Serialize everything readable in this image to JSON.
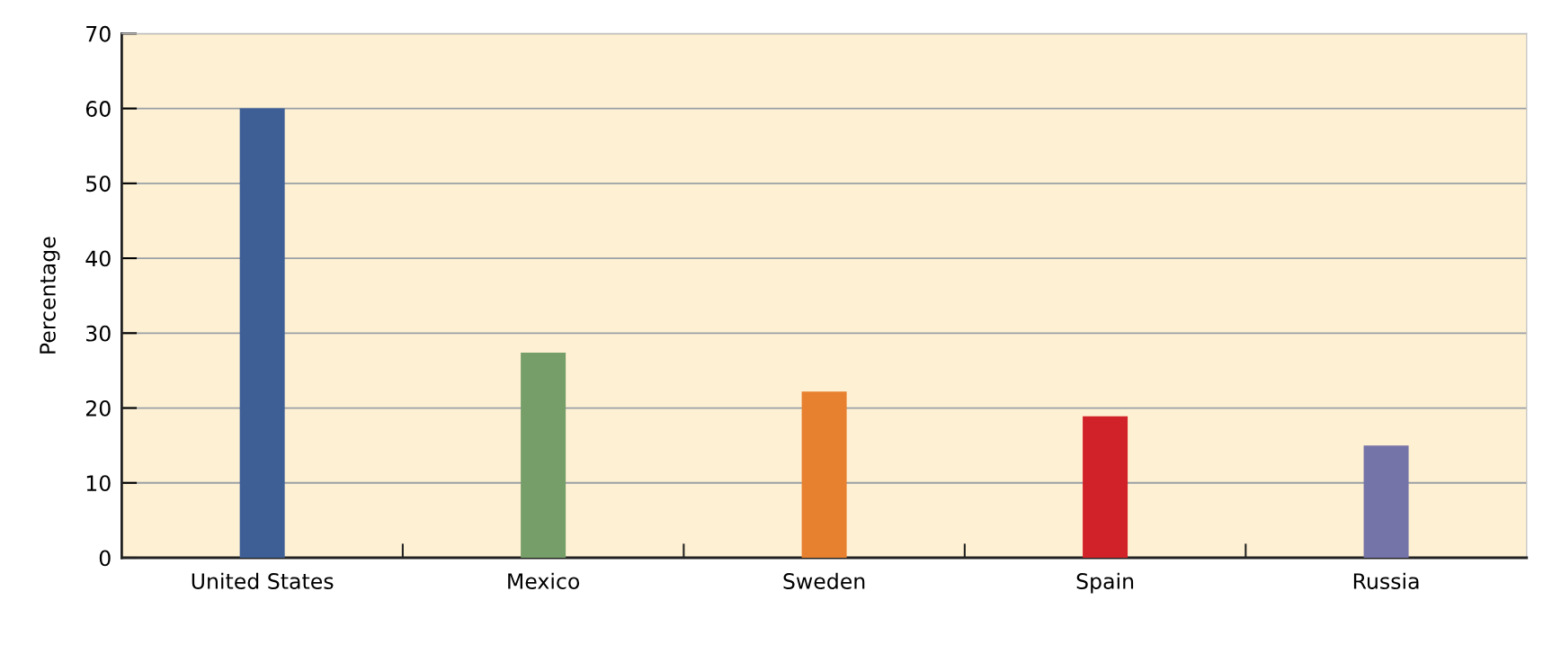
{
  "chart_data": {
    "type": "bar",
    "ylabel": "Percentage",
    "categories": [
      "United States",
      "Mexico",
      "Sweden",
      "Spain",
      "Russia"
    ],
    "values": [
      60,
      27.4,
      22.2,
      18.9,
      15.0
    ],
    "colors": [
      "#3d5f96",
      "#769e68",
      "#e8812f",
      "#d12229",
      "#7474a8"
    ],
    "ylim": [
      0,
      70
    ],
    "yticks": [
      0,
      10,
      20,
      30,
      40,
      50,
      60,
      70
    ],
    "grid": "y"
  }
}
